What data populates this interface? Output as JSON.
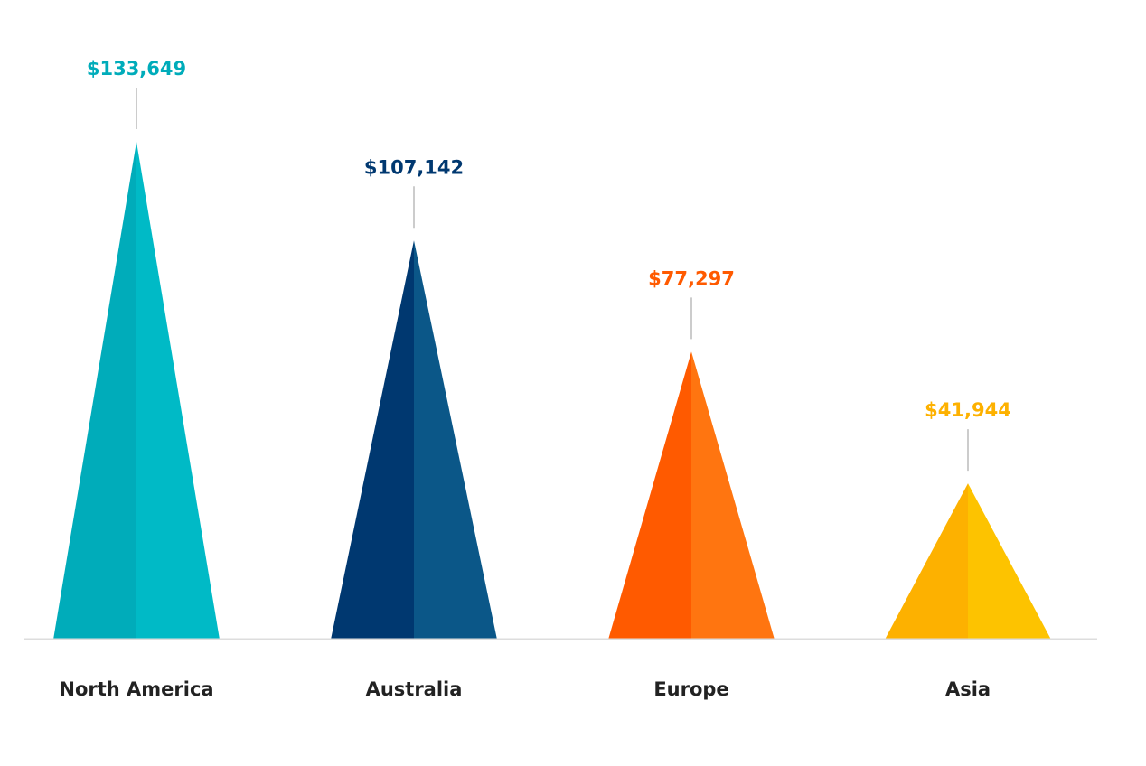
{
  "chart_data": {
    "type": "bar",
    "style": "triangle",
    "categories": [
      "North America",
      "Australia",
      "Europe",
      "Asia"
    ],
    "values": [
      133649,
      107142,
      77297,
      41944
    ],
    "value_labels": [
      "$133,649",
      "$107,142",
      "$77,297",
      "$41,944"
    ],
    "colors": [
      {
        "light": "#00BAC6",
        "dark": "#00ACBA"
      },
      {
        "light": "#0B5788",
        "dark": "#003870"
      },
      {
        "light": "#FF7510",
        "dark": "#FF5A00"
      },
      {
        "light": "#FDC300",
        "dark": "#FDB100"
      }
    ],
    "axis_color": "#DDDDDD",
    "leader_color": "#999999",
    "category_label_color": "#222222",
    "grid": false,
    "legend": "none"
  }
}
